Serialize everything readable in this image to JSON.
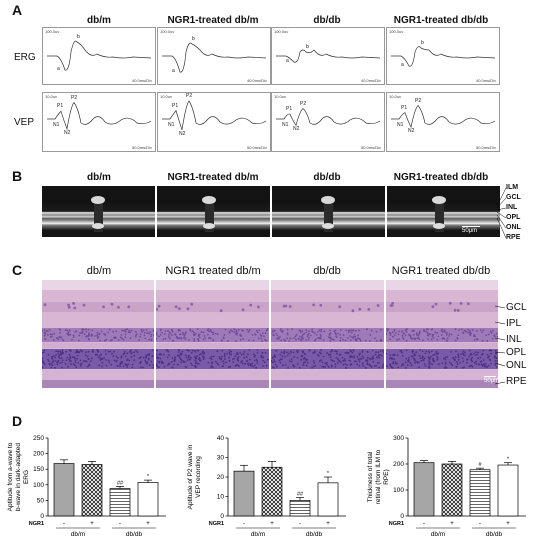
{
  "panels": {
    "A": "A",
    "B": "B",
    "C": "C",
    "D": "D"
  },
  "columns": [
    "db/m",
    "NGR1-treated db/m",
    "db/db",
    "NGR1-treated db/db"
  ],
  "columns_c": [
    "db/m",
    "NGR1 treated db/m",
    "db/db",
    "NGR1 treated db/db"
  ],
  "panelA": {
    "rows": [
      "ERG",
      "VEP"
    ],
    "erg": {
      "scale_top": "100.0uv",
      "scale_bottom": "40.0ms/Div",
      "wave_a": "a",
      "wave_b": "b"
    },
    "vep": {
      "scale_top": "10.0uv",
      "scale_bottom": "50.0ms/Div",
      "p1": "P1",
      "p2": "P2",
      "n1": "N1",
      "n2": "N2"
    }
  },
  "panelB": {
    "layers": [
      "ILM",
      "GCL",
      "INL",
      "OPL",
      "ONL",
      "RPE"
    ],
    "scale_bar": "50μm"
  },
  "panelC": {
    "layers": [
      "GCL",
      "IPL",
      "INL",
      "OPL",
      "ONL",
      "RPE"
    ],
    "scale_bar": "50μm"
  },
  "colors": {
    "bar_fill": "#a6a6a6",
    "hatch": "#000000",
    "erg_wave": "#333333",
    "he_pink": "#d9b7d4",
    "he_purple": "#6f4b9a"
  },
  "chart_data": [
    {
      "type": "bar",
      "ylabel": "Aptitude from a-wave to b-wave in dark-adapted ERG",
      "ylim": [
        0,
        250
      ],
      "yticks": [
        0,
        50,
        100,
        150,
        200,
        250
      ],
      "ngr1_row": [
        "-",
        "+",
        "-",
        "+"
      ],
      "ngr1_label": "NGR1",
      "groups": [
        "db/m",
        "db/db"
      ],
      "values": [
        168,
        165,
        88,
        107
      ],
      "errors": [
        12,
        10,
        7,
        8
      ],
      "patterns": [
        "solid",
        "hatched",
        "striped",
        "plain"
      ],
      "annotations": [
        "",
        "",
        "##",
        "*"
      ]
    },
    {
      "type": "bar",
      "ylabel": "Aptitude of P2 wave in VEP recording",
      "ylim": [
        0,
        40
      ],
      "yticks": [
        0,
        10,
        20,
        30,
        40
      ],
      "ngr1_row": [
        "-",
        "+",
        "-",
        "+"
      ],
      "ngr1_label": "NGR1",
      "groups": [
        "db/m",
        "db/db"
      ],
      "values": [
        23,
        25,
        8,
        17
      ],
      "errors": [
        3,
        3,
        1.5,
        3
      ],
      "patterns": [
        "solid",
        "hatched",
        "striped",
        "plain"
      ],
      "annotations": [
        "",
        "",
        "##",
        "*"
      ]
    },
    {
      "type": "bar",
      "ylabel": "Thickness of total retinal (from ILM to RPE)",
      "ylim": [
        0,
        300
      ],
      "yticks": [
        0,
        100,
        200,
        300
      ],
      "ngr1_row": [
        "-",
        "+",
        "-",
        "+"
      ],
      "ngr1_label": "NGR1",
      "groups": [
        "db/m",
        "db/db"
      ],
      "values": [
        205,
        200,
        178,
        196
      ],
      "errors": [
        8,
        10,
        6,
        9
      ],
      "patterns": [
        "solid",
        "hatched",
        "striped",
        "plain"
      ],
      "annotations": [
        "",
        "",
        "#",
        "*"
      ]
    }
  ]
}
